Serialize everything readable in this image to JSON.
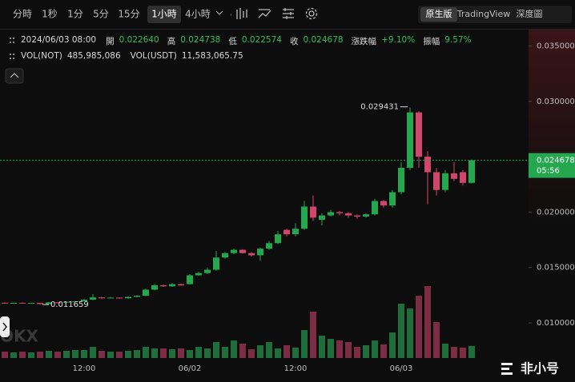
{
  "ui": {
    "intervals": [
      "分時",
      "1秒",
      "1分",
      "5分",
      "15分",
      "1小時",
      "4小時"
    ],
    "selected_interval": 5,
    "views": [
      "原生版",
      "TradingView",
      "深度圖"
    ],
    "selected_view": 0,
    "watermark": "OKX",
    "brand": "非小号"
  },
  "header": {
    "datetime": "2024/06/03 08:00",
    "fields": [
      {
        "label": "開",
        "value": "0.022640"
      },
      {
        "label": "高",
        "value": "0.024738"
      },
      {
        "label": "低",
        "value": "0.022574"
      },
      {
        "label": "收",
        "value": "0.024678"
      },
      {
        "label": "漲跌幅",
        "value": "+9.10%"
      },
      {
        "label": "振幅",
        "value": "9.57%"
      }
    ],
    "volume_fields": [
      {
        "label": "VOL(NOT)",
        "value": "485,985,086"
      },
      {
        "label": "VOL(USDT)",
        "value": "11,583,065.75"
      }
    ]
  },
  "chart_data": {
    "type": "candlestick",
    "categories": [
      null,
      null,
      null,
      null,
      null,
      null,
      null,
      null,
      null,
      "12:00",
      null,
      null,
      null,
      null,
      null,
      null,
      null,
      null,
      null,
      null,
      null,
      "06/02",
      null,
      null,
      null,
      null,
      null,
      null,
      null,
      null,
      null,
      null,
      null,
      "12:00",
      null,
      null,
      null,
      null,
      null,
      null,
      null,
      null,
      null,
      null,
      null,
      "06/03",
      null,
      null,
      null,
      null,
      null,
      null,
      null,
      null
    ],
    "open": [
      0.01182,
      0.01178,
      0.01181,
      0.01177,
      0.0118,
      0.0117,
      0.01185,
      0.01183,
      0.0119,
      0.01195,
      0.0121,
      0.0123,
      0.01222,
      0.01228,
      0.01222,
      0.01235,
      0.01245,
      0.013,
      0.0134,
      0.0133,
      0.0135,
      0.0135,
      0.0143,
      0.0145,
      0.0148,
      0.0159,
      0.0163,
      0.0166,
      0.0163,
      0.0161,
      0.0167,
      0.0172,
      0.0184,
      0.018,
      0.0185,
      0.0205,
      0.0193,
      0.0197,
      0.02,
      0.0199,
      0.0197,
      0.0196,
      0.0198,
      0.021,
      0.0206,
      0.0218,
      0.024,
      0.029,
      0.025,
      0.0236,
      0.022,
      0.0235,
      0.0236,
      0.02264
    ],
    "high": [
      0.01185,
      0.01183,
      0.01183,
      0.01182,
      0.01182,
      0.0119,
      0.01188,
      0.01193,
      0.01198,
      0.01215,
      0.0126,
      0.01235,
      0.01232,
      0.0123,
      0.0124,
      0.0125,
      0.0131,
      0.0135,
      0.01345,
      0.0136,
      0.01355,
      0.0144,
      0.0146,
      0.015,
      0.0165,
      0.0164,
      0.0167,
      0.01665,
      0.0164,
      0.0168,
      0.0174,
      0.0183,
      0.0185,
      0.019,
      0.021,
      0.0215,
      0.0199,
      0.0202,
      0.0201,
      0.02,
      0.0198,
      0.0199,
      0.0212,
      0.0211,
      0.022,
      0.0245,
      0.029431,
      0.0291,
      0.0255,
      0.024,
      0.0238,
      0.0245,
      0.0238,
      0.024738
    ],
    "low": [
      0.01176,
      0.01175,
      0.01175,
      0.01175,
      0.011659,
      0.01168,
      0.0118,
      0.0118,
      0.01188,
      0.01192,
      0.01205,
      0.01218,
      0.0122,
      0.01218,
      0.0122,
      0.01232,
      0.0124,
      0.01295,
      0.01325,
      0.01325,
      0.01335,
      0.01345,
      0.01425,
      0.0144,
      0.0147,
      0.0158,
      0.0162,
      0.01625,
      0.016,
      0.0156,
      0.0166,
      0.0171,
      0.0178,
      0.0178,
      0.0184,
      0.0192,
      0.0188,
      0.0196,
      0.0197,
      0.0195,
      0.0194,
      0.0195,
      0.0197,
      0.0204,
      0.0204,
      0.0216,
      0.0238,
      0.024,
      0.0207,
      0.0215,
      0.0218,
      0.0228,
      0.0224,
      0.022574
    ],
    "close": [
      0.01178,
      0.01181,
      0.01177,
      0.0118,
      0.0117,
      0.01185,
      0.01183,
      0.0119,
      0.01195,
      0.0121,
      0.0123,
      0.01222,
      0.01228,
      0.01222,
      0.01235,
      0.01245,
      0.013,
      0.0134,
      0.0133,
      0.0135,
      0.0134,
      0.0143,
      0.0145,
      0.0148,
      0.0159,
      0.0163,
      0.0166,
      0.0163,
      0.0161,
      0.0167,
      0.0172,
      0.018,
      0.018,
      0.0185,
      0.0205,
      0.0195,
      0.0197,
      0.02,
      0.0199,
      0.0197,
      0.0196,
      0.0198,
      0.021,
      0.0206,
      0.0218,
      0.024,
      0.029,
      0.025,
      0.0236,
      0.022,
      0.0235,
      0.023,
      0.02264,
      0.024678
    ],
    "volume": [
      256000000,
      224000000,
      256000000,
      224000000,
      256000000,
      288000000,
      256000000,
      288000000,
      320000000,
      320000000,
      448000000,
      288000000,
      256000000,
      256000000,
      288000000,
      320000000,
      448000000,
      384000000,
      384000000,
      352000000,
      384000000,
      320000000,
      448000000,
      384000000,
      640000000,
      448000000,
      704000000,
      576000000,
      352000000,
      512000000,
      640000000,
      384000000,
      512000000,
      416000000,
      1120000000,
      1856000000,
      896000000,
      768000000,
      704000000,
      640000000,
      448000000,
      512000000,
      704000000,
      544000000,
      1024000000,
      2176000000,
      1984000000,
      2496000000,
      2880000000,
      1440000000,
      576000000,
      448000000,
      416000000,
      485985086
    ],
    "ylim": [
      0.00683,
      0.03626
    ],
    "yticks": [
      {
        "value": 0.035,
        "label": "0.035000"
      },
      {
        "value": 0.03,
        "label": "0.030000"
      },
      {
        "value": 0.025,
        "label": "0.025000"
      },
      {
        "value": 0.02,
        "label": "0.020000"
      },
      {
        "value": 0.015,
        "label": "0.015000"
      },
      {
        "value": 0.01,
        "label": "0.010000"
      }
    ],
    "y2lim": [
      0,
      13056000000
    ],
    "countdown": "05:56",
    "grid": false,
    "up_color": "#25a750",
    "down_color": "#d2466c",
    "volume_up_color": "#1f6d3b",
    "volume_down_color": "#7d2c45"
  }
}
